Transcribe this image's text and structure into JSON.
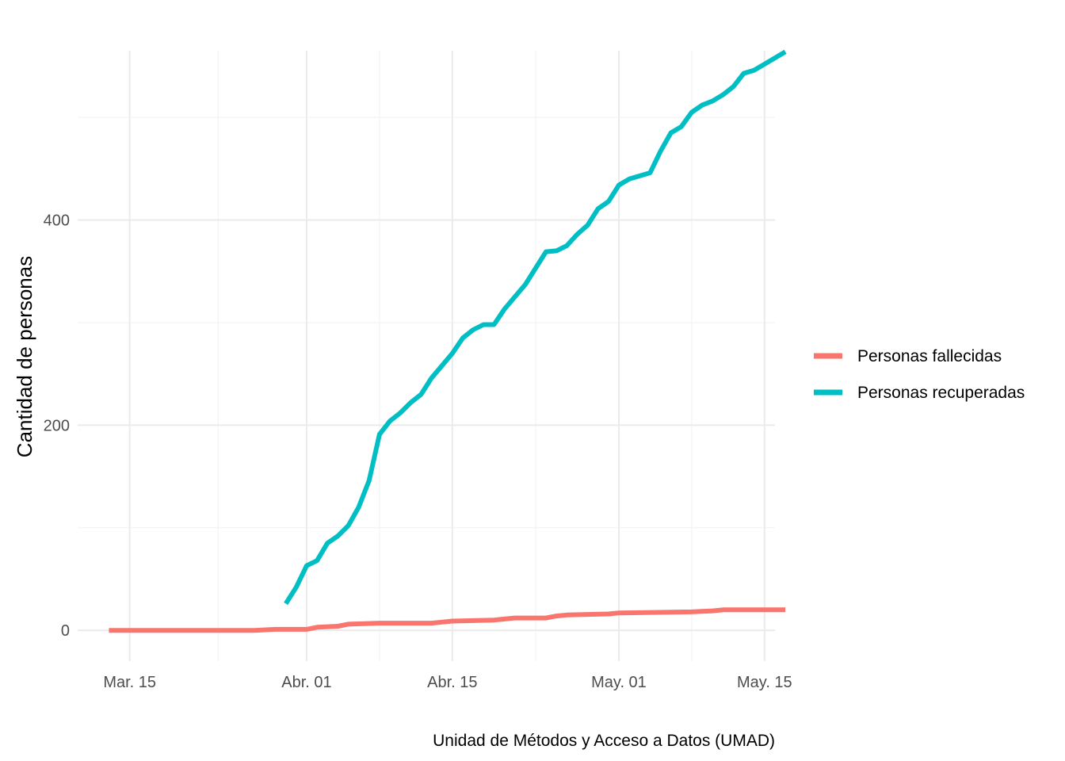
{
  "chart_data": {
    "type": "line",
    "title": "",
    "xlabel": "",
    "ylabel": "Cantidad de personas",
    "caption": "Unidad de Métodos y Acceso a Datos (UMAD)",
    "x_type": "date",
    "xlim": [
      "2020-03-10",
      "2020-05-16"
    ],
    "ylim": [
      -30,
      565
    ],
    "x_ticks": [
      {
        "date": "2020-03-15",
        "label": "Mar. 15"
      },
      {
        "date": "2020-04-01",
        "label": "Abr. 01"
      },
      {
        "date": "2020-04-15",
        "label": "Abr. 15"
      },
      {
        "date": "2020-05-01",
        "label": "May. 01"
      },
      {
        "date": "2020-05-15",
        "label": "May. 15"
      }
    ],
    "y_ticks": [
      0,
      200,
      400
    ],
    "grid": true,
    "legend_position": "right",
    "series": [
      {
        "name": "Personas fallecidas",
        "color": "#F8766D",
        "points": [
          [
            "2020-03-13",
            0
          ],
          [
            "2020-03-27",
            0
          ],
          [
            "2020-03-29",
            1
          ],
          [
            "2020-04-01",
            1
          ],
          [
            "2020-04-02",
            3
          ],
          [
            "2020-04-04",
            4
          ],
          [
            "2020-04-05",
            6
          ],
          [
            "2020-04-08",
            7
          ],
          [
            "2020-04-13",
            7
          ],
          [
            "2020-04-14",
            8
          ],
          [
            "2020-04-15",
            9
          ],
          [
            "2020-04-19",
            10
          ],
          [
            "2020-04-20",
            11
          ],
          [
            "2020-04-21",
            12
          ],
          [
            "2020-04-24",
            12
          ],
          [
            "2020-04-25",
            14
          ],
          [
            "2020-04-26",
            15
          ],
          [
            "2020-04-30",
            16
          ],
          [
            "2020-05-01",
            17
          ],
          [
            "2020-05-08",
            18
          ],
          [
            "2020-05-10",
            19
          ],
          [
            "2020-05-11",
            20
          ],
          [
            "2020-05-17",
            20
          ]
        ]
      },
      {
        "name": "Personas recuperadas",
        "color": "#00BFC4",
        "points": [
          [
            "2020-03-30",
            26
          ],
          [
            "2020-03-31",
            42
          ],
          [
            "2020-04-01",
            63
          ],
          [
            "2020-04-02",
            68
          ],
          [
            "2020-04-03",
            85
          ],
          [
            "2020-04-04",
            92
          ],
          [
            "2020-04-05",
            102
          ],
          [
            "2020-04-06",
            120
          ],
          [
            "2020-04-07",
            146
          ],
          [
            "2020-04-08",
            191
          ],
          [
            "2020-04-09",
            204
          ],
          [
            "2020-04-10",
            212
          ],
          [
            "2020-04-11",
            222
          ],
          [
            "2020-04-12",
            230
          ],
          [
            "2020-04-13",
            246
          ],
          [
            "2020-04-14",
            258
          ],
          [
            "2020-04-15",
            270
          ],
          [
            "2020-04-16",
            285
          ],
          [
            "2020-04-17",
            293
          ],
          [
            "2020-04-18",
            298
          ],
          [
            "2020-04-19",
            298
          ],
          [
            "2020-04-20",
            313
          ],
          [
            "2020-04-21",
            325
          ],
          [
            "2020-04-22",
            337
          ],
          [
            "2020-04-23",
            353
          ],
          [
            "2020-04-24",
            369
          ],
          [
            "2020-04-25",
            370
          ],
          [
            "2020-04-26",
            375
          ],
          [
            "2020-04-27",
            386
          ],
          [
            "2020-04-28",
            395
          ],
          [
            "2020-04-29",
            411
          ],
          [
            "2020-04-30",
            418
          ],
          [
            "2020-05-01",
            434
          ],
          [
            "2020-05-02",
            440
          ],
          [
            "2020-05-03",
            443
          ],
          [
            "2020-05-04",
            446
          ],
          [
            "2020-05-05",
            467
          ],
          [
            "2020-05-06",
            485
          ],
          [
            "2020-05-07",
            491
          ],
          [
            "2020-05-08",
            505
          ],
          [
            "2020-05-09",
            512
          ],
          [
            "2020-05-10",
            516
          ],
          [
            "2020-05-11",
            522
          ],
          [
            "2020-05-12",
            530
          ],
          [
            "2020-05-13",
            543
          ],
          [
            "2020-05-14",
            546
          ],
          [
            "2020-05-15",
            552
          ],
          [
            "2020-05-16",
            558
          ],
          [
            "2020-05-17",
            564
          ]
        ]
      }
    ]
  }
}
